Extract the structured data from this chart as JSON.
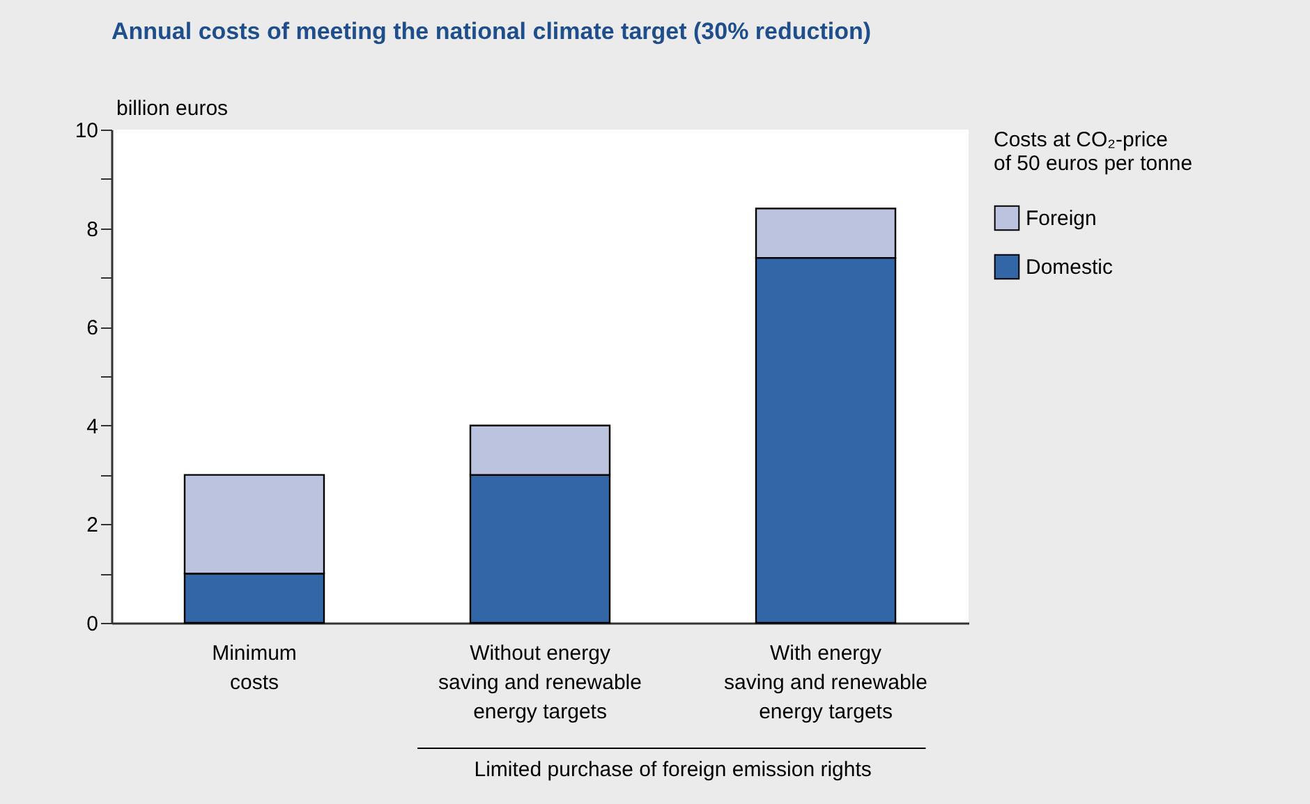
{
  "chart_data": {
    "type": "bar",
    "title": "Annual costs of meeting the national climate target (30% reduction)",
    "ylabel": "billion euros",
    "legend_title": "Costs at CO₂-price\nof 50 euros per tonne",
    "categories": [
      "Minimum\ncosts",
      "Without energy\nsaving and renewable\nenergy targets",
      "With energy\nsaving and renewable\nenergy targets"
    ],
    "series": [
      {
        "name": "Domestic",
        "color": "#3366a6",
        "values": [
          1,
          3,
          7.4
        ]
      },
      {
        "name": "Foreign",
        "color": "#bcc3df",
        "values": [
          2,
          1,
          1.0
        ]
      }
    ],
    "stacked": true,
    "ylim": [
      0,
      10
    ],
    "yticks": [
      0,
      {
        "value": 1,
        "label": null
      },
      2,
      {
        "value": 3,
        "label": null
      },
      4,
      {
        "value": 5,
        "label": null
      },
      6,
      {
        "value": 7,
        "label": null
      },
      8,
      {
        "value": 9,
        "label": null
      },
      10
    ],
    "annotations": [
      "Limited purchase of foreign emission rights"
    ],
    "grid": false,
    "legend": "top right"
  }
}
